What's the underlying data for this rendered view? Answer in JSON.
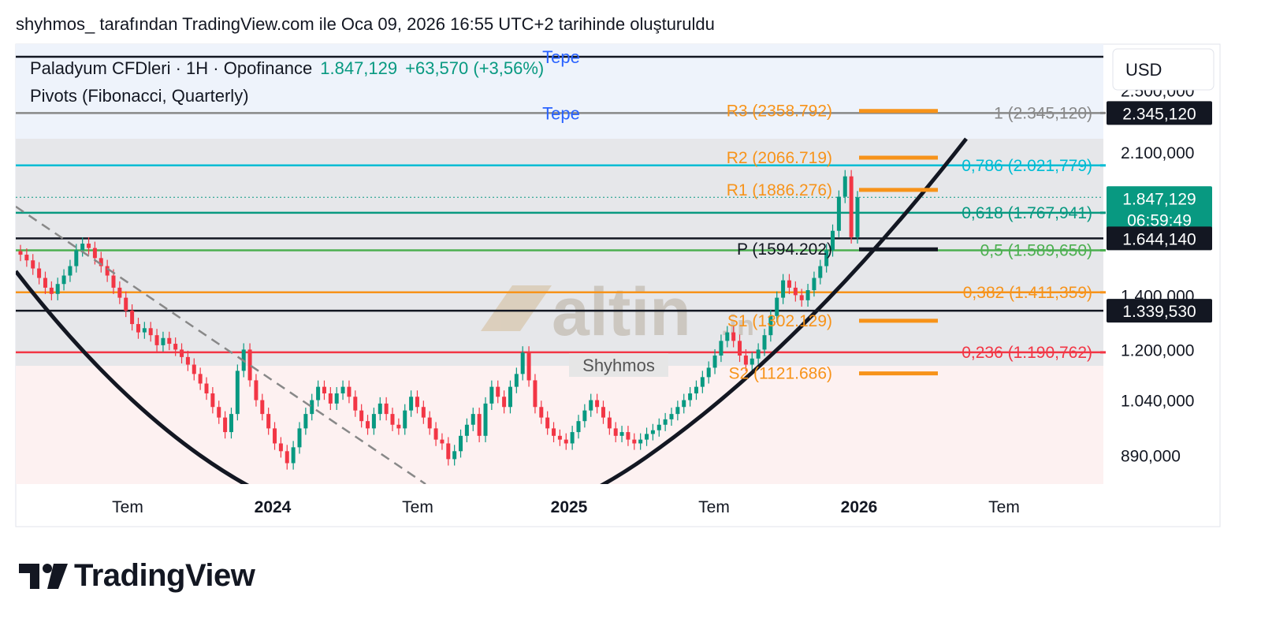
{
  "caption": "shyhmos_ tarafından TradingView.com ile Oca 09, 2026 16:55 UTC+2 tarihinde oluşturuldu",
  "legend": {
    "symbol": "Paladyum CFDleri · 1H · Opofinance",
    "last": "1.847,129",
    "change": "+63,570 (+3,56%)",
    "indicator": "Pivots (Fibonacci, Quarterly)"
  },
  "currency": "USD",
  "watermark": {
    "brand": "altin",
    "suffix": ".in",
    "author": "Shyhmos"
  },
  "footer": {
    "brand": "TradingView"
  },
  "colors": {
    "up": "#089981",
    "down": "#f23645",
    "pivot_orange": "#f7931a",
    "fib_teal": "#00bcd4",
    "fib_green": "#089981",
    "fib_lime": "#4caf50",
    "fib_red": "#f23645",
    "tepe_blue": "#2962ff"
  },
  "chart_data": {
    "type": "candlestick",
    "xlabel": "",
    "ylabel": "",
    "x_ticks": [
      "Tem",
      "2024",
      "Tem",
      "2025",
      "Tem",
      "2026",
      "Tem"
    ],
    "y_ticks": [
      "2.500,000",
      "2.100,000",
      "1.400,000",
      "1.200,000",
      "1.040,000",
      "890,000"
    ],
    "ylim": [
      820,
      2850
    ],
    "y_scale": "log",
    "price_labels": [
      {
        "text": "2.345,120",
        "value": 2345.12,
        "style": "dark"
      },
      {
        "text": "1.847,129",
        "sub": "06:59:49",
        "value": 1847.129,
        "style": "green"
      },
      {
        "text": "1.644,140",
        "value": 1644.14,
        "style": "dark"
      },
      {
        "text": "1.339,530",
        "value": 1339.53,
        "style": "dark"
      }
    ],
    "horizontal_lines": [
      {
        "value": 2750,
        "color": "#131722",
        "label": "Tepe",
        "label_color": "#2962ff"
      },
      {
        "value": 2345.12,
        "color": "#888888",
        "label": "Tepe",
        "label_color": "#2962ff"
      },
      {
        "value": 2021.779,
        "color": "#00bcd4"
      },
      {
        "value": 1767.941,
        "color": "#089981"
      },
      {
        "value": 1644.14,
        "color": "#131722"
      },
      {
        "value": 1589.65,
        "color": "#4caf50"
      },
      {
        "value": 1411.359,
        "color": "#f7931a"
      },
      {
        "value": 1339.53,
        "color": "#131722"
      },
      {
        "value": 1190.762,
        "color": "#f23645"
      }
    ],
    "fib_levels": [
      {
        "text": "1 (2.345,120)",
        "value": 2345.12,
        "color": "#888888"
      },
      {
        "text": "0,786 (2.021,779)",
        "value": 2021.779,
        "color": "#00bcd4"
      },
      {
        "text": "0,618 (1.767,941)",
        "value": 1767.941,
        "color": "#089981"
      },
      {
        "text": "0,5 (1.589,650)",
        "value": 1589.65,
        "color": "#4caf50"
      },
      {
        "text": "0,382 (1.411,359)",
        "value": 1411.359,
        "color": "#f7931a"
      },
      {
        "text": "0,236 (1.190,762)",
        "value": 1190.762,
        "color": "#f23645"
      }
    ],
    "pivots": [
      {
        "text": "R3 (2358.792)",
        "value": 2358.792,
        "color": "#f7931a"
      },
      {
        "text": "R2 (2066.719)",
        "value": 2066.719,
        "color": "#f7931a"
      },
      {
        "text": "R1 (1886.276)",
        "value": 1886.276,
        "color": "#f7931a"
      },
      {
        "text": "P (1594.202)",
        "value": 1594.202,
        "color": "#131722"
      },
      {
        "text": "S1 (1302.129)",
        "value": 1302.129,
        "color": "#f7931a"
      },
      {
        "text": "S2 (1121.686)",
        "value": 1121.686,
        "color": "#f7931a"
      }
    ],
    "series": [
      {
        "close": 1570
      },
      {
        "close": 1545
      },
      {
        "close": 1510
      },
      {
        "close": 1470
      },
      {
        "close": 1430
      },
      {
        "close": 1405
      },
      {
        "close": 1445
      },
      {
        "close": 1480
      },
      {
        "close": 1520
      },
      {
        "close": 1590
      },
      {
        "close": 1620
      },
      {
        "close": 1600
      },
      {
        "close": 1555
      },
      {
        "close": 1520
      },
      {
        "close": 1480
      },
      {
        "close": 1430
      },
      {
        "close": 1390
      },
      {
        "close": 1340
      },
      {
        "close": 1290
      },
      {
        "close": 1260
      },
      {
        "close": 1275
      },
      {
        "close": 1250
      },
      {
        "close": 1215
      },
      {
        "close": 1240
      },
      {
        "close": 1220
      },
      {
        "close": 1200
      },
      {
        "close": 1175
      },
      {
        "close": 1150
      },
      {
        "close": 1120
      },
      {
        "close": 1090
      },
      {
        "close": 1060
      },
      {
        "close": 1020
      },
      {
        "close": 990
      },
      {
        "close": 950
      },
      {
        "close": 1000
      },
      {
        "close": 1130
      },
      {
        "close": 1200
      },
      {
        "close": 1100
      },
      {
        "close": 1040
      },
      {
        "close": 1000
      },
      {
        "close": 960
      },
      {
        "close": 920
      },
      {
        "close": 900
      },
      {
        "close": 870
      },
      {
        "close": 910
      },
      {
        "close": 960
      },
      {
        "close": 1000
      },
      {
        "close": 1040
      },
      {
        "close": 1080
      },
      {
        "close": 1060
      },
      {
        "close": 1030
      },
      {
        "close": 1060
      },
      {
        "close": 1080
      },
      {
        "close": 1050
      },
      {
        "close": 1010
      },
      {
        "close": 980
      },
      {
        "close": 960
      },
      {
        "close": 1000
      },
      {
        "close": 1030
      },
      {
        "close": 1000
      },
      {
        "close": 970
      },
      {
        "close": 960
      },
      {
        "close": 1010
      },
      {
        "close": 1050
      },
      {
        "close": 1020
      },
      {
        "close": 990
      },
      {
        "close": 960
      },
      {
        "close": 930
      },
      {
        "close": 920
      },
      {
        "close": 880
      },
      {
        "close": 900
      },
      {
        "close": 940
      },
      {
        "close": 970
      },
      {
        "close": 1000
      },
      {
        "close": 940
      },
      {
        "close": 1030
      },
      {
        "close": 1080
      },
      {
        "close": 1050
      },
      {
        "close": 1020
      },
      {
        "close": 1080
      },
      {
        "close": 1120
      },
      {
        "close": 1190
      },
      {
        "close": 1100
      },
      {
        "close": 1020
      },
      {
        "close": 990
      },
      {
        "close": 960
      },
      {
        "close": 940
      },
      {
        "close": 930
      },
      {
        "close": 920
      },
      {
        "close": 950
      },
      {
        "close": 980
      },
      {
        "close": 1010
      },
      {
        "close": 1040
      },
      {
        "close": 1020
      },
      {
        "close": 990
      },
      {
        "close": 960
      },
      {
        "close": 940
      },
      {
        "close": 950
      },
      {
        "close": 930
      },
      {
        "close": 920
      },
      {
        "close": 930
      },
      {
        "close": 945
      },
      {
        "close": 955
      },
      {
        "close": 970
      },
      {
        "close": 985
      },
      {
        "close": 1000
      },
      {
        "close": 1020
      },
      {
        "close": 1040
      },
      {
        "close": 1060
      },
      {
        "close": 1080
      },
      {
        "close": 1110
      },
      {
        "close": 1140
      },
      {
        "close": 1180
      },
      {
        "close": 1230
      },
      {
        "close": 1260
      },
      {
        "close": 1230
      },
      {
        "close": 1180
      },
      {
        "close": 1150
      },
      {
        "close": 1170
      },
      {
        "close": 1200
      },
      {
        "close": 1250
      },
      {
        "close": 1320
      },
      {
        "close": 1390
      },
      {
        "close": 1460
      },
      {
        "close": 1430
      },
      {
        "close": 1400
      },
      {
        "close": 1380
      },
      {
        "close": 1420
      },
      {
        "close": 1470
      },
      {
        "close": 1520
      },
      {
        "close": 1590
      },
      {
        "close": 1680
      },
      {
        "close": 1850
      },
      {
        "close": 1960
      },
      {
        "close": 1650
      },
      {
        "close": 1847.129
      }
    ]
  }
}
